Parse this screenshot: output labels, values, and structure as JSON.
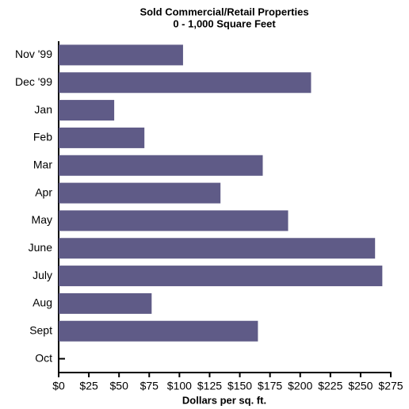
{
  "chart_data": {
    "type": "bar",
    "orientation": "horizontal",
    "title": "Sold Commercial/Retail Properties",
    "subtitle": "0 - 1,000 Square Feet",
    "x_label": "Dollars per sq. ft.",
    "categories": [
      "Nov '99",
      "Dec '99",
      "Jan",
      "Feb",
      "Mar",
      "Apr",
      "May",
      "June",
      "July",
      "Aug",
      "Sept",
      "Oct"
    ],
    "values": [
      103,
      209,
      46,
      71,
      169,
      134,
      190,
      262,
      268,
      77,
      165,
      null
    ],
    "color": "#5f5b87",
    "xlim": [
      0,
      275
    ],
    "xticks": [
      {
        "value": 0,
        "label": "$0"
      },
      {
        "value": 25,
        "label": "$25"
      },
      {
        "value": 50,
        "label": "$50"
      },
      {
        "value": 75,
        "label": "$75"
      },
      {
        "value": 100,
        "label": "$100"
      },
      {
        "value": 125,
        "label": "$125"
      },
      {
        "value": 150,
        "label": "$150"
      },
      {
        "value": 175,
        "label": "$175"
      },
      {
        "value": 200,
        "label": "$200"
      },
      {
        "value": 225,
        "label": "$225"
      },
      {
        "value": 250,
        "label": "$250"
      },
      {
        "value": 275,
        "label": "$275"
      }
    ],
    "grid": false
  }
}
